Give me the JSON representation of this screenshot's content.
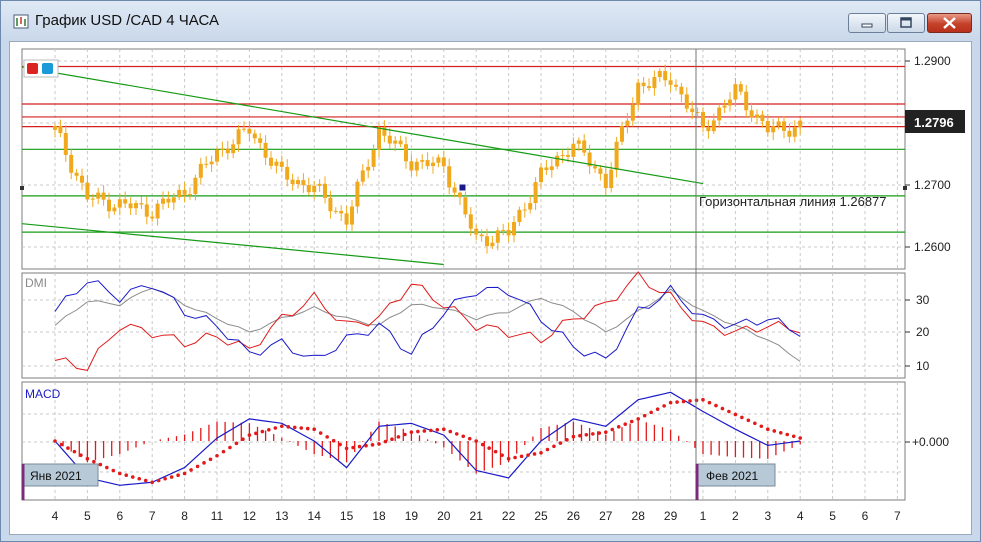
{
  "window": {
    "title": "График USD /CAD  4 ЧАСА",
    "minimize_label": "minimize",
    "maximize_label": "maximize",
    "close_label": "close"
  },
  "colors": {
    "bull_candle": "#f0a91c",
    "red_line": "#d42020",
    "green_line": "#169b16",
    "dmi_plus": "#e01c1c",
    "dmi_minus": "#1a1ac8",
    "adx": "#8c8c8c",
    "macd_line": "#1a1ac8",
    "signal_dots": "#e31a1a",
    "histogram": "#e31a1a",
    "price_label_bg": "#222222"
  },
  "price_panel": {
    "price_axis": [
      "1.2900",
      "1.2700",
      "1.2600"
    ],
    "current_price": "1.2796",
    "horizontal_line_label": "Горизонтальная линия 1.26877"
  },
  "dmi_panel": {
    "label": "DMI",
    "axis": [
      "30",
      "20",
      "10"
    ]
  },
  "macd_panel": {
    "label": "MACD",
    "axis_zero": "+0.000",
    "month_markers": [
      "Янв 2021",
      "Фев 2021"
    ]
  },
  "time_axis": [
    "4",
    "5",
    "6",
    "7",
    "8",
    "11",
    "12",
    "13",
    "14",
    "15",
    "18",
    "19",
    "20",
    "21",
    "22",
    "25",
    "26",
    "27",
    "28",
    "29",
    "1",
    "2",
    "3",
    "4",
    "5",
    "6",
    "7"
  ],
  "chart_data": {
    "type": "candlestick",
    "instrument": "USD /CAD",
    "timeframe": "4 ЧАСА",
    "price_ylim": [
      1.2575,
      1.2915
    ],
    "horizontal_levels_red": [
      1.2888,
      1.283,
      1.281,
      1.2795
    ],
    "horizontal_levels_green": [
      1.276,
      1.2688,
      1.2632
    ],
    "trendlines_green": [
      {
        "from": {
          "day": "4",
          "price": 1.2887
        },
        "to": {
          "day": "1",
          "price": 1.2707
        }
      },
      {
        "from": {
          "day": "4",
          "price": 1.2645
        },
        "to": {
          "day": "20",
          "price": 1.2582
        }
      }
    ],
    "close_by_day": [
      {
        "day": "4",
        "close": 1.279
      },
      {
        "day": "5",
        "close": 1.2685
      },
      {
        "day": "6",
        "close": 1.2675
      },
      {
        "day": "7",
        "close": 1.2665
      },
      {
        "day": "8",
        "close": 1.2695
      },
      {
        "day": "11",
        "close": 1.2755
      },
      {
        "day": "12",
        "close": 1.279
      },
      {
        "day": "13",
        "close": 1.272
      },
      {
        "day": "14",
        "close": 1.27
      },
      {
        "day": "15",
        "close": 1.265
      },
      {
        "day": "18",
        "close": 1.279
      },
      {
        "day": "19",
        "close": 1.274
      },
      {
        "day": "20",
        "close": 1.2735
      },
      {
        "day": "21",
        "close": 1.262
      },
      {
        "day": "22",
        "close": 1.263
      },
      {
        "day": "25",
        "close": 1.272
      },
      {
        "day": "26",
        "close": 1.277
      },
      {
        "day": "27",
        "close": 1.271
      },
      {
        "day": "28",
        "close": 1.286
      },
      {
        "day": "29",
        "close": 1.287
      },
      {
        "day": "1",
        "close": 1.279
      },
      {
        "day": "2",
        "close": 1.285
      },
      {
        "day": "3",
        "close": 1.279
      },
      {
        "day": "4",
        "close": 1.2796
      }
    ],
    "dmi": {
      "ylim": [
        5,
        35
      ],
      "plus_di": [
        10,
        8,
        20,
        18,
        15,
        17,
        13,
        22,
        28,
        20,
        22,
        32,
        26,
        20,
        18,
        16,
        22,
        26,
        34,
        28,
        20,
        18,
        20,
        19
      ],
      "minus_di": [
        24,
        33,
        28,
        32,
        24,
        20,
        12,
        15,
        10,
        16,
        20,
        12,
        24,
        30,
        30,
        22,
        14,
        10,
        24,
        30,
        22,
        20,
        22,
        18
      ],
      "adx": [
        20,
        27,
        26,
        31,
        26,
        22,
        18,
        22,
        25,
        22,
        20,
        26,
        25,
        22,
        24,
        28,
        24,
        18,
        24,
        30,
        24,
        20,
        16,
        10
      ]
    },
    "macd": {
      "ylim": [
        -0.004,
        0.004
      ],
      "macd_line": [
        0.0,
        -0.0025,
        -0.003,
        -0.0028,
        -0.0018,
        0.0002,
        0.0015,
        0.0012,
        0.0,
        -0.0018,
        0.001,
        0.0012,
        0.0004,
        -0.002,
        -0.0025,
        0.0,
        0.0015,
        0.001,
        0.0028,
        0.0033,
        0.002,
        0.0008,
        -0.0003,
        0.0
      ],
      "signal_line": [
        0.0,
        -0.0012,
        -0.0022,
        -0.0028,
        -0.0022,
        -0.001,
        0.0004,
        0.001,
        0.0008,
        -0.0005,
        -0.0002,
        0.0006,
        0.0008,
        0.0,
        -0.0012,
        -0.0008,
        0.0003,
        0.0006,
        0.0015,
        0.0026,
        0.0028,
        0.0018,
        0.0008,
        0.0002
      ]
    }
  }
}
